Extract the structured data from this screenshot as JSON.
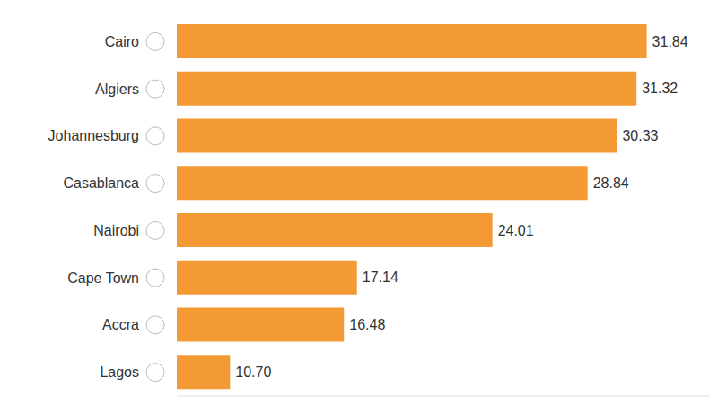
{
  "chart_data": {
    "type": "bar",
    "orientation": "horizontal",
    "categories": [
      "Cairo",
      "Algiers",
      "Johannesburg",
      "Casablanca",
      "Nairobi",
      "Cape Town",
      "Accra",
      "Lagos"
    ],
    "values": [
      31.84,
      31.32,
      30.33,
      28.84,
      24.01,
      17.14,
      16.48,
      10.7
    ],
    "value_labels": [
      "31.84",
      "31.32",
      "30.33",
      "28.84",
      "24.01",
      "17.14",
      "16.48",
      "10.70"
    ],
    "color": "#f39a35",
    "xlim": [
      8,
      35
    ],
    "data_labels": true,
    "tick_labels": "y",
    "grid": false
  }
}
